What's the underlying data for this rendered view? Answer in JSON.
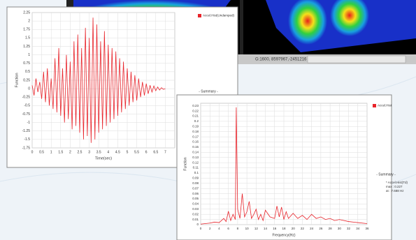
{
  "status_bar": [
    "2451216",
    "G:1600, 8597967,-2451216"
  ],
  "chart_data": [
    {
      "type": "line",
      "legend": "top-right",
      "grid": true,
      "x_label": "Time(sec)",
      "y_label": "Function",
      "annotations": [
        "- Summary -"
      ],
      "xlim": [
        0,
        7.5
      ],
      "xticks": [
        0,
        0.5,
        1,
        1.5,
        2,
        2.5,
        3,
        3.5,
        4,
        4.5,
        5,
        5.5,
        6,
        6.5,
        7
      ],
      "ylim": [
        -1.75,
        2.25
      ],
      "yticks": [
        2.25,
        2,
        1.75,
        1.5,
        1.25,
        1,
        0.75,
        0.5,
        0.25,
        0,
        -0.25,
        -0.5,
        -0.75,
        -1,
        -1.25,
        -1.5,
        -1.75
      ],
      "x": [
        0,
        0.1,
        0.2,
        0.3,
        0.4,
        0.5,
        0.6,
        0.7,
        0.8,
        0.9,
        1,
        1.1,
        1.2,
        1.3,
        1.4,
        1.5,
        1.6,
        1.7,
        1.8,
        1.9,
        2,
        2.1,
        2.2,
        2.3,
        2.4,
        2.5,
        2.6,
        2.7,
        2.8,
        2.9,
        3,
        3.1,
        3.2,
        3.3,
        3.4,
        3.5,
        3.6,
        3.7,
        3.8,
        3.9,
        4,
        4.1,
        4.2,
        4.3,
        4.4,
        4.5,
        4.6,
        4.7,
        4.8,
        4.9,
        5,
        5.1,
        5.2,
        5.3,
        5.4,
        5.5,
        5.6,
        5.7,
        5.8,
        5.9,
        6,
        6.1,
        6.2,
        6.3,
        6.4,
        6.5,
        6.6,
        6.7,
        6.8,
        6.9,
        7
      ],
      "series": [
        {
          "name": "Accel.Hist(Undamped)",
          "color": "#e8242b",
          "values": [
            0.1,
            -0.2,
            0.3,
            -0.1,
            0.2,
            -0.3,
            0.5,
            -0.4,
            0.6,
            -0.5,
            0.3,
            -0.6,
            0.9,
            -0.7,
            1.2,
            -0.8,
            0.6,
            -1.0,
            1.0,
            -0.9,
            0.8,
            -1.2,
            1.4,
            -1.1,
            1.6,
            -1.3,
            1.2,
            -1.5,
            1.8,
            -1.4,
            1.5,
            -1.6,
            2.1,
            -1.5,
            1.9,
            -1.3,
            1.4,
            -1.2,
            1.7,
            -1.1,
            1.3,
            -1.0,
            1.2,
            -0.9,
            1.1,
            -0.8,
            0.9,
            -0.7,
            0.8,
            -0.6,
            0.6,
            -0.5,
            0.5,
            -0.4,
            0.4,
            -0.35,
            0.3,
            -0.25,
            0.2,
            -0.2,
            0.15,
            -0.15,
            0.1,
            -0.1,
            0.08,
            -0.06,
            0.05,
            -0.04,
            0.03,
            -0.02,
            0.0
          ]
        }
      ]
    },
    {
      "type": "line",
      "legend": "top-right",
      "grid": true,
      "x_label": "Frequency(Hz)",
      "y_label": "Function",
      "annotations": [
        "- Summary -",
        "* Accel.Hist(Td)",
        "max : 0.227",
        "at : 7.688 Hz"
      ],
      "xlim": [
        0,
        36
      ],
      "xticks": [
        0,
        2,
        4,
        6,
        8,
        10,
        12,
        14,
        16,
        18,
        20,
        22,
        24,
        26,
        28,
        30,
        32,
        34,
        36
      ],
      "ylim": [
        0,
        0.235
      ],
      "yticks": [
        0.23,
        0.22,
        0.21,
        0.2,
        0.19,
        0.18,
        0.17,
        0.16,
        0.15,
        0.14,
        0.13,
        0.12,
        0.11,
        0.1,
        0.09,
        0.08,
        0.07,
        0.06,
        0.05,
        0.04,
        0.03,
        0.02,
        0.01,
        0
      ],
      "x": [
        0,
        1,
        2,
        3,
        4,
        5,
        5.5,
        6,
        6.5,
        7,
        7.5,
        7.7,
        8,
        8.5,
        9,
        9.5,
        10,
        10.5,
        11,
        11.5,
        12,
        12.5,
        13,
        13.5,
        14,
        15,
        16,
        16.5,
        17,
        17.5,
        18,
        18.5,
        19,
        20,
        21,
        22,
        23,
        24,
        25,
        26,
        27,
        28,
        29,
        30,
        32,
        34,
        36
      ],
      "series": [
        {
          "name": "Accel.Hist",
          "color": "#e8242b",
          "values": [
            0.001,
            0.002,
            0.003,
            0.005,
            0.004,
            0.012,
            0.006,
            0.026,
            0.008,
            0.02,
            0.01,
            0.227,
            0.03,
            0.012,
            0.06,
            0.015,
            0.025,
            0.045,
            0.012,
            0.02,
            0.03,
            0.01,
            0.02,
            0.008,
            0.028,
            0.015,
            0.012,
            0.036,
            0.015,
            0.034,
            0.01,
            0.025,
            0.012,
            0.022,
            0.012,
            0.018,
            0.01,
            0.02,
            0.012,
            0.015,
            0.01,
            0.012,
            0.008,
            0.01,
            0.006,
            0.004,
            0.002
          ]
        }
      ]
    }
  ]
}
